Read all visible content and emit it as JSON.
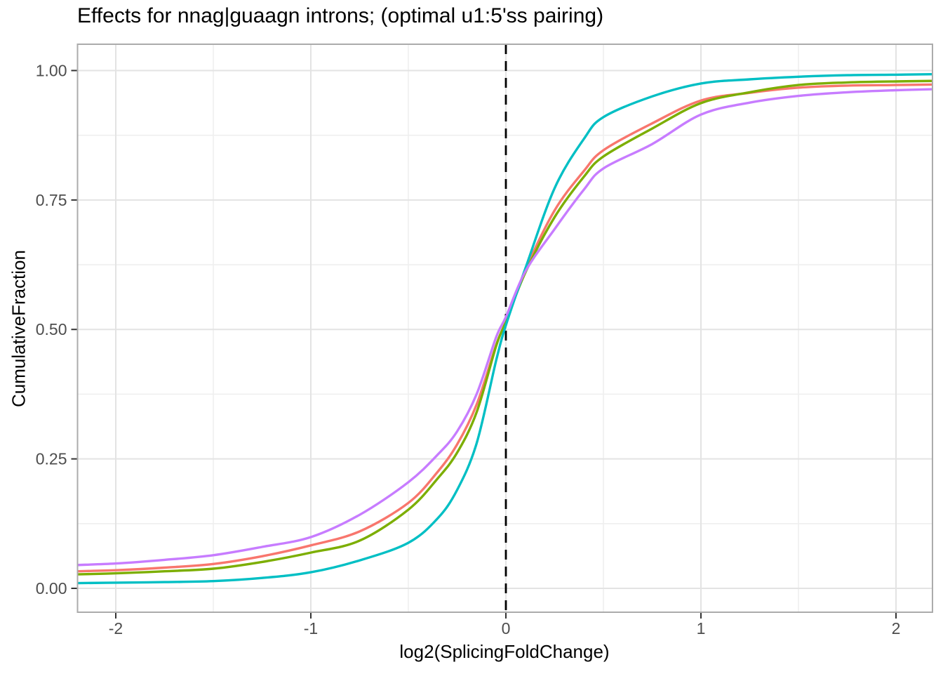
{
  "chart_data": {
    "type": "line",
    "subtype": "cumulative-distribution",
    "title": "Effects for nnag|guaagn introns; (optimal u1:5'ss pairing)",
    "xlabel": "log2(SplicingFoldChange)",
    "ylabel": "CumulativeFraction",
    "xlim": [
      -2.196,
      2.187
    ],
    "ylim": [
      -0.0461,
      1.0508
    ],
    "x_ticks": [
      -2,
      -1,
      0,
      1,
      2
    ],
    "x_tick_labels": [
      "-2",
      "-1",
      "0",
      "1",
      "2"
    ],
    "x_minor_ticks": [
      -1.5,
      -0.5,
      0.5,
      1.5
    ],
    "y_ticks": [
      0,
      0.25,
      0.5,
      0.75,
      1
    ],
    "y_tick_labels": [
      "0.00",
      "0.25",
      "0.50",
      "0.75",
      "1.00"
    ],
    "y_minor_ticks": [
      0.125,
      0.375,
      0.625,
      0.875
    ],
    "grid": true,
    "legend_position": "none",
    "vline": {
      "x": 0,
      "linetype": "dashed",
      "color": "#000000"
    },
    "x": [
      -2.2,
      -2.0,
      -1.75,
      -1.5,
      -1.25,
      -1.0,
      -0.75,
      -0.5,
      -0.35,
      -0.25,
      -0.15,
      -0.05,
      0,
      0.1,
      0.25,
      0.4,
      0.5,
      0.75,
      1.0,
      1.25,
      1.5,
      1.75,
      2.0,
      2.2
    ],
    "series": [
      {
        "name": "salmon",
        "color": "#F8766D",
        "values": [
          0.033,
          0.035,
          0.04,
          0.047,
          0.062,
          0.083,
          0.11,
          0.165,
          0.225,
          0.278,
          0.355,
          0.47,
          0.516,
          0.615,
          0.73,
          0.806,
          0.846,
          0.898,
          0.942,
          0.957,
          0.967,
          0.971,
          0.972,
          0.973
        ]
      },
      {
        "name": "olive-green",
        "color": "#7CAE00",
        "values": [
          0.027,
          0.029,
          0.033,
          0.038,
          0.051,
          0.069,
          0.092,
          0.152,
          0.212,
          0.262,
          0.34,
          0.468,
          0.515,
          0.61,
          0.717,
          0.795,
          0.834,
          0.888,
          0.937,
          0.958,
          0.972,
          0.977,
          0.979,
          0.98
        ]
      },
      {
        "name": "teal",
        "color": "#00BFC4",
        "values": [
          0.01,
          0.011,
          0.012,
          0.014,
          0.02,
          0.031,
          0.054,
          0.088,
          0.135,
          0.19,
          0.28,
          0.44,
          0.508,
          0.618,
          0.773,
          0.868,
          0.91,
          0.95,
          0.975,
          0.983,
          0.988,
          0.991,
          0.992,
          0.993
        ]
      },
      {
        "name": "purple",
        "color": "#C77CFF",
        "values": [
          0.045,
          0.048,
          0.055,
          0.064,
          0.08,
          0.099,
          0.142,
          0.205,
          0.258,
          0.303,
          0.375,
          0.485,
          0.524,
          0.612,
          0.694,
          0.77,
          0.811,
          0.858,
          0.915,
          0.938,
          0.951,
          0.958,
          0.962,
          0.964
        ]
      }
    ],
    "colors": {
      "panel_background": "#FFFFFF",
      "grid_major": "#E3E3E3",
      "grid_minor": "#EFEFEF",
      "panel_border": "#ABABAB",
      "axis_tick": "#333333",
      "tick_label": "#4D4D4D",
      "title_text": "#000000"
    }
  }
}
